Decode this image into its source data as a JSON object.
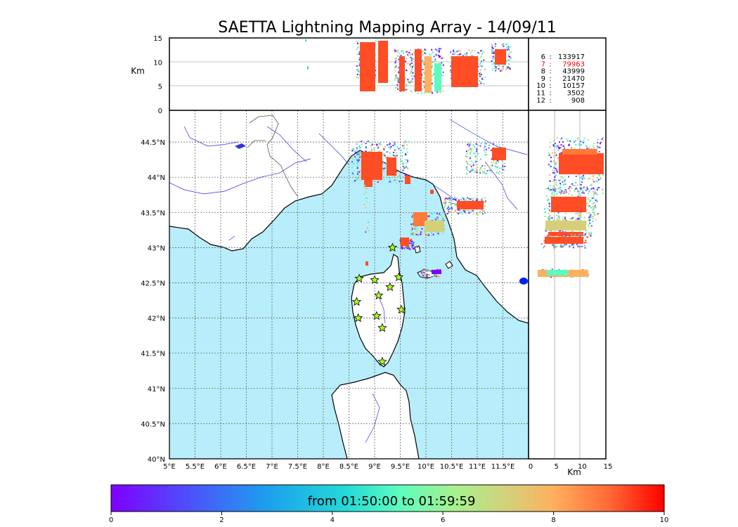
{
  "title": "SAETTA Lightning Mapping Array - 14/09/11",
  "time_range_text": "from 01:50:00 to 01:59:59",
  "altitude_unit": "Km",
  "colors": {
    "sea": "#b8eefb",
    "coast": "#000000",
    "rivers": "#3333dd",
    "borders": "#444444",
    "station_fill": "#aaff22",
    "highlight_count": "#ff0000"
  },
  "map_axes": {
    "lon_ticks": [
      "5°E",
      "5.5°E",
      "6°E",
      "6.5°E",
      "7°E",
      "7.5°E",
      "8°E",
      "8.5°E",
      "9°E",
      "9.5°E",
      "10°E",
      "10.5°E",
      "11°E",
      "11.5°E"
    ],
    "lat_ticks": [
      "40°N",
      "40.5°N",
      "41°N",
      "41.5°N",
      "42°N",
      "42.5°N",
      "43°N",
      "43.5°N",
      "44°N",
      "44.5°N"
    ],
    "lon_range": [
      5.0,
      12.0
    ],
    "lat_range": [
      40.0,
      44.95
    ],
    "grid": "dashed"
  },
  "top_panel": {
    "ylabel": "Km",
    "y_ticks": [
      "0",
      "5",
      "10",
      "15"
    ],
    "y_range": [
      0,
      15
    ]
  },
  "side_panel": {
    "xlabel": "Km",
    "x_ticks": [
      "0",
      "5",
      "10",
      "15"
    ],
    "x_range": [
      0,
      15
    ]
  },
  "colorbar": {
    "ticks": [
      "0",
      "2",
      "4",
      "6",
      "8",
      "10"
    ],
    "range": [
      0,
      10
    ]
  },
  "counts": [
    {
      "key": "6",
      "value": "133917",
      "highlight": false
    },
    {
      "key": "7",
      "value": "79963",
      "highlight": true
    },
    {
      "key": "8",
      "value": "43999",
      "highlight": false
    },
    {
      "key": "9",
      "value": "21470",
      "highlight": false
    },
    {
      "key": "10",
      "value": "10157",
      "highlight": false
    },
    {
      "key": "11",
      "value": "3502",
      "highlight": false
    },
    {
      "key": "12",
      "value": "908",
      "highlight": false
    }
  ],
  "stations": [
    {
      "lon": 9.35,
      "lat": 43.0
    },
    {
      "lon": 8.7,
      "lat": 42.56
    },
    {
      "lon": 9.0,
      "lat": 42.54
    },
    {
      "lon": 9.47,
      "lat": 42.58
    },
    {
      "lon": 9.3,
      "lat": 42.44
    },
    {
      "lon": 9.08,
      "lat": 42.32
    },
    {
      "lon": 8.65,
      "lat": 42.23
    },
    {
      "lon": 9.52,
      "lat": 42.12
    },
    {
      "lon": 8.68,
      "lat": 42.0
    },
    {
      "lon": 9.04,
      "lat": 42.03
    },
    {
      "lon": 9.15,
      "lat": 41.86
    },
    {
      "lon": 9.15,
      "lat": 41.38
    }
  ]
}
